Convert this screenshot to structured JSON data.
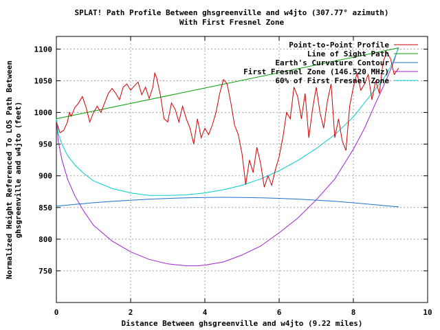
{
  "chart_data": {
    "type": "line",
    "title_line1": "SPLAT! Path Profile Between ghsgreenville and w4jto (307.77° azimuth)",
    "title_line2": "With First Fresnel Zone",
    "xlabel": "Distance Between ghsgreenville and w4jto (9.22 miles)",
    "ylabel_line1": "Normalized Height Referenced To LOS Path Between",
    "ylabel_line2": "ghsgreenville and w4jto (feet)",
    "xlim": [
      0,
      10
    ],
    "ylim": [
      700,
      1120
    ],
    "xticks": [
      0,
      2,
      4,
      6,
      8,
      10
    ],
    "yticks": [
      750,
      800,
      850,
      900,
      950,
      1000,
      1050,
      1100
    ],
    "grid": true,
    "legend_position": "top-right",
    "series": [
      {
        "name": "Point-to-Point Profile",
        "color": "#cc0000",
        "x": [
          0.0,
          0.1,
          0.2,
          0.3,
          0.35,
          0.4,
          0.5,
          0.6,
          0.7,
          0.8,
          0.9,
          1.0,
          1.1,
          1.2,
          1.3,
          1.4,
          1.5,
          1.6,
          1.7,
          1.8,
          1.9,
          2.0,
          2.1,
          2.2,
          2.3,
          2.4,
          2.5,
          2.6,
          2.65,
          2.7,
          2.8,
          2.9,
          3.0,
          3.1,
          3.2,
          3.3,
          3.4,
          3.5,
          3.6,
          3.7,
          3.8,
          3.9,
          4.0,
          4.1,
          4.2,
          4.3,
          4.4,
          4.5,
          4.6,
          4.7,
          4.8,
          4.9,
          5.0,
          5.1,
          5.2,
          5.3,
          5.4,
          5.5,
          5.6,
          5.7,
          5.8,
          5.9,
          6.0,
          6.1,
          6.2,
          6.3,
          6.4,
          6.5,
          6.6,
          6.7,
          6.8,
          6.9,
          7.0,
          7.1,
          7.2,
          7.3,
          7.4,
          7.5,
          7.6,
          7.7,
          7.8,
          7.9,
          8.0,
          8.1,
          8.2,
          8.3,
          8.4,
          8.5,
          8.6,
          8.7,
          8.8,
          8.9,
          9.0,
          9.1,
          9.22
        ],
        "y": [
          985,
          968,
          972,
          985,
          1000,
          994,
          1008,
          1015,
          1025,
          1008,
          985,
          1000,
          1010,
          1000,
          1015,
          1030,
          1038,
          1030,
          1020,
          1040,
          1045,
          1035,
          1042,
          1048,
          1028,
          1040,
          1022,
          1040,
          1062,
          1055,
          1028,
          990,
          985,
          1015,
          1005,
          985,
          1010,
          990,
          975,
          950,
          990,
          960,
          975,
          965,
          980,
          1000,
          1030,
          1052,
          1045,
          1015,
          980,
          965,
          935,
          886,
          925,
          905,
          945,
          920,
          882,
          900,
          885,
          910,
          930,
          960,
          1000,
          990,
          1040,
          1025,
          990,
          1030,
          960,
          1005,
          1040,
          1000,
          975,
          1018,
          1045,
          960,
          990,
          955,
          940,
          1010,
          1040,
          1062,
          1035,
          1045,
          1060,
          1020,
          1050,
          1030,
          1080,
          1095,
          1085,
          1060,
          1070
        ]
      },
      {
        "name": "Line of Sight Path",
        "color": "#00a000",
        "x": [
          0,
          9.22
        ],
        "y": [
          990,
          1102
        ]
      },
      {
        "name": "Earth's Curvature Contour",
        "color": "#1c6fd2",
        "x": [
          0,
          0.5,
          1,
          1.5,
          2,
          2.5,
          3,
          3.5,
          4,
          4.5,
          5,
          5.5,
          6,
          6.5,
          7,
          7.5,
          8,
          8.5,
          9,
          9.22
        ],
        "y": [
          852,
          855,
          857.5,
          859.6,
          861.5,
          863,
          864.3,
          865.2,
          865.8,
          866,
          865.8,
          865.3,
          864.4,
          863.2,
          861.6,
          859.7,
          857.4,
          854.8,
          852,
          851
        ]
      },
      {
        "name": "First Fresnel Zone (146.520 MHz)",
        "color": "#a020d0",
        "x": [
          0,
          0.05,
          0.15,
          0.3,
          0.5,
          0.75,
          1,
          1.5,
          2,
          2.5,
          3,
          3.5,
          3.8,
          4,
          4.5,
          5,
          5.5,
          6,
          6.5,
          7,
          7.5,
          8,
          8.3,
          8.6,
          8.8,
          9.0,
          9.1,
          9.17,
          9.22
        ],
        "y": [
          990,
          955,
          925,
          895,
          868,
          843,
          822,
          797,
          780,
          768,
          761,
          758,
          758,
          759,
          764,
          775,
          789,
          810,
          833,
          862,
          895,
          942,
          975,
          1015,
          1040,
          1067,
          1082,
          1095,
          1102
        ]
      },
      {
        "name": "60% of First Fresnel Zone",
        "color": "#00cccc",
        "x": [
          0,
          0.05,
          0.15,
          0.3,
          0.5,
          0.75,
          1,
          1.5,
          2,
          2.5,
          3,
          3.5,
          4,
          4.5,
          5,
          5.5,
          6,
          6.5,
          7,
          7.5,
          8,
          8.5,
          8.8,
          9.0,
          9.1,
          9.17,
          9.22
        ],
        "y": [
          990,
          967,
          950,
          932,
          917,
          903,
          892,
          880,
          873,
          869,
          869,
          870,
          873,
          878,
          885,
          895,
          908,
          924,
          943,
          965,
          993,
          1030,
          1052,
          1072,
          1085,
          1095,
          1102
        ]
      }
    ]
  }
}
